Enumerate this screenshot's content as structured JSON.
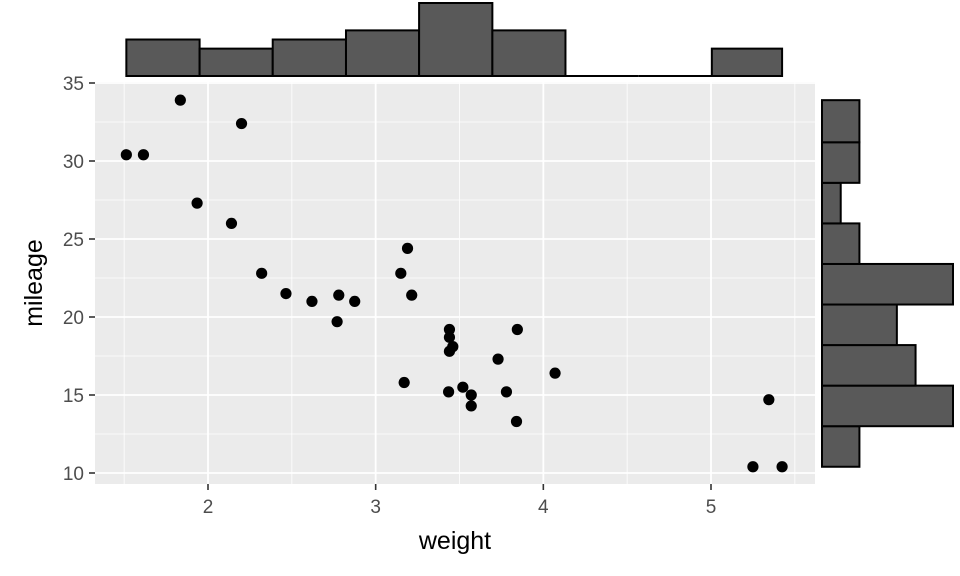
{
  "chart_data": {
    "type": "scatter",
    "title": "",
    "xlabel": "weight",
    "ylabel": "mileage",
    "xlim": [
      1.33,
      5.6
    ],
    "ylim": [
      9.5,
      35.3
    ],
    "x_ticks": [
      2,
      3,
      4,
      5
    ],
    "y_ticks": [
      10,
      15,
      20,
      25,
      30,
      35
    ],
    "grid": true,
    "legend": "none",
    "colors": {
      "panel_background": "#ebebeb",
      "grid": "#ffffff",
      "point": "#000000",
      "bar_fill": "#595959",
      "bar_outline": "#000000",
      "tick_text": "#4d4d4d",
      "tick_mark": "#333333"
    },
    "points": [
      {
        "x": 1.513,
        "y": 30.4
      },
      {
        "x": 1.615,
        "y": 30.4
      },
      {
        "x": 1.835,
        "y": 33.9
      },
      {
        "x": 1.935,
        "y": 27.3
      },
      {
        "x": 2.14,
        "y": 26.0
      },
      {
        "x": 2.2,
        "y": 32.4
      },
      {
        "x": 2.32,
        "y": 22.8
      },
      {
        "x": 2.465,
        "y": 21.5
      },
      {
        "x": 2.62,
        "y": 21.0
      },
      {
        "x": 2.77,
        "y": 19.7
      },
      {
        "x": 2.78,
        "y": 21.4
      },
      {
        "x": 2.875,
        "y": 21.0
      },
      {
        "x": 3.15,
        "y": 22.8
      },
      {
        "x": 3.17,
        "y": 15.8
      },
      {
        "x": 3.19,
        "y": 24.4
      },
      {
        "x": 3.215,
        "y": 21.4
      },
      {
        "x": 3.435,
        "y": 15.2
      },
      {
        "x": 3.44,
        "y": 18.7
      },
      {
        "x": 3.44,
        "y": 19.2
      },
      {
        "x": 3.44,
        "y": 17.8
      },
      {
        "x": 3.46,
        "y": 18.1
      },
      {
        "x": 3.52,
        "y": 15.5
      },
      {
        "x": 3.57,
        "y": 14.3
      },
      {
        "x": 3.57,
        "y": 15.0
      },
      {
        "x": 3.73,
        "y": 17.3
      },
      {
        "x": 3.78,
        "y": 15.2
      },
      {
        "x": 3.84,
        "y": 13.3
      },
      {
        "x": 3.845,
        "y": 19.2
      },
      {
        "x": 4.07,
        "y": 16.4
      },
      {
        "x": 5.25,
        "y": 10.4
      },
      {
        "x": 5.345,
        "y": 14.7
      },
      {
        "x": 5.424,
        "y": 10.4
      }
    ],
    "top_histogram": {
      "bins": [
        {
          "x0": 1.513,
          "x1": 1.95,
          "count": 4
        },
        {
          "x0": 1.95,
          "x1": 2.386,
          "count": 3
        },
        {
          "x0": 2.386,
          "x1": 2.823,
          "count": 4
        },
        {
          "x0": 2.823,
          "x1": 3.259,
          "count": 5
        },
        {
          "x0": 3.259,
          "x1": 3.696,
          "count": 8
        },
        {
          "x0": 3.696,
          "x1": 4.132,
          "count": 5
        },
        {
          "x0": 4.132,
          "x1": 4.569,
          "count": 0
        },
        {
          "x0": 4.569,
          "x1": 5.005,
          "count": 0
        },
        {
          "x0": 5.005,
          "x1": 5.424,
          "count": 3
        }
      ]
    },
    "right_histogram": {
      "bins": [
        {
          "y0": 10.4,
          "y1": 13.0,
          "count": 2
        },
        {
          "y0": 13.0,
          "y1": 15.6,
          "count": 7
        },
        {
          "y0": 15.6,
          "y1": 18.2,
          "count": 5
        },
        {
          "y0": 18.2,
          "y1": 20.8,
          "count": 4
        },
        {
          "y0": 20.8,
          "y1": 23.4,
          "count": 7
        },
        {
          "y0": 23.4,
          "y1": 26.0,
          "count": 2
        },
        {
          "y0": 26.0,
          "y1": 28.6,
          "count": 1
        },
        {
          "y0": 28.6,
          "y1": 31.2,
          "count": 2
        },
        {
          "y0": 31.2,
          "y1": 33.9,
          "count": 2
        }
      ]
    }
  }
}
